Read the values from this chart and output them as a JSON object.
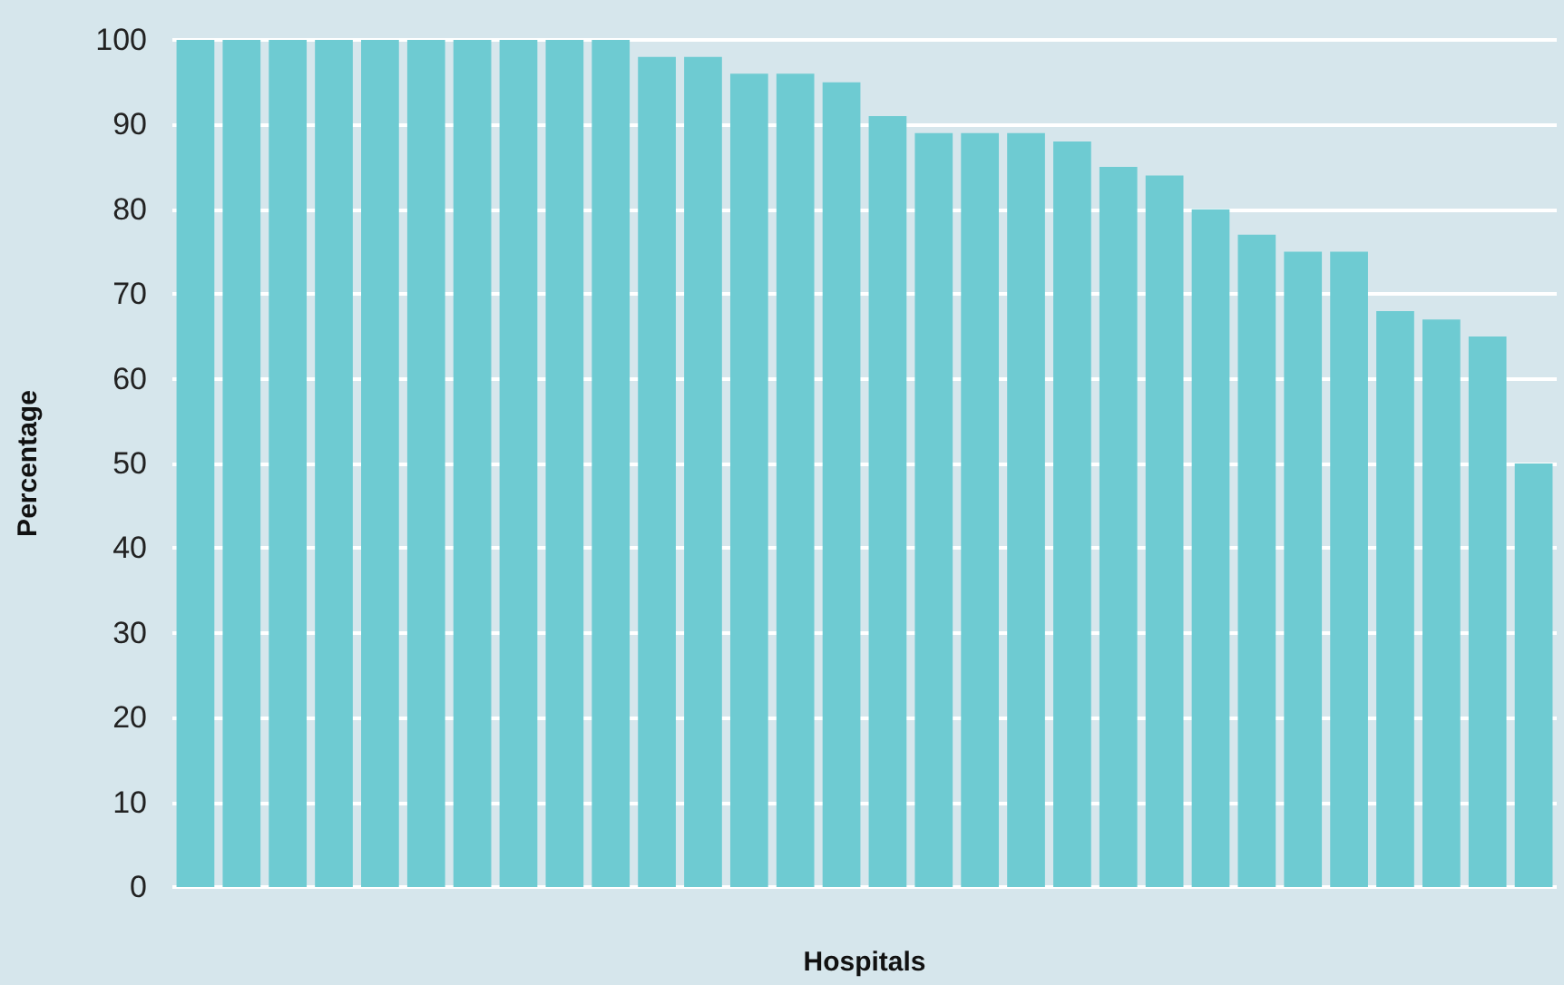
{
  "chart_data": {
    "type": "bar",
    "xlabel": "Hospitals",
    "ylabel": "Percentage",
    "categories": [
      null,
      null,
      null,
      null,
      null,
      null,
      null,
      null,
      null,
      null,
      null,
      null,
      null,
      null,
      null,
      null,
      null,
      null,
      null,
      null,
      null,
      null,
      null,
      null,
      null,
      null,
      null,
      null,
      null,
      null
    ],
    "values": [
      100,
      100,
      100,
      100,
      100,
      100,
      100,
      100,
      100,
      100,
      98,
      98,
      96,
      96,
      95,
      91,
      89,
      89,
      89,
      88,
      85,
      84,
      80,
      77,
      75,
      75,
      68,
      67,
      65,
      50
    ],
    "color": "#6ecbd2",
    "ylim": [
      0,
      100
    ],
    "yticks": [
      0,
      10,
      20,
      30,
      40,
      50,
      60,
      70,
      80,
      90,
      100
    ],
    "grid": "y"
  }
}
